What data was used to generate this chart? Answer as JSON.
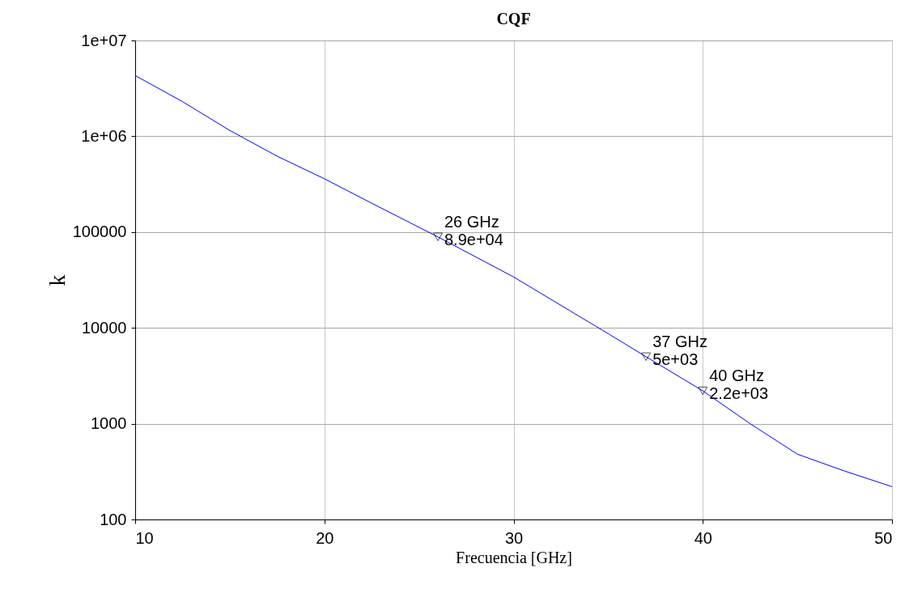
{
  "chart_data": {
    "type": "line",
    "title": "CQF",
    "xlabel": "Frecuencia [GHz]",
    "ylabel": "k",
    "x": [
      10,
      12.5,
      15,
      17.5,
      20,
      22.5,
      26,
      30,
      33,
      35,
      37,
      40,
      42.5,
      45,
      47.5,
      50
    ],
    "series": [
      {
        "color": "#0000ff",
        "values": [
          4300000,
          2300000,
          1150000,
          620000,
          360000,
          200000,
          89000,
          34000,
          15000,
          8700,
          5000,
          2200,
          1000,
          480,
          320,
          220
        ]
      }
    ],
    "xlim": [
      10,
      50
    ],
    "xticks": [
      10,
      20,
      30,
      40,
      50
    ],
    "ylim": [
      100,
      10000000
    ],
    "yticks": [
      100,
      1000,
      10000,
      100000,
      {
        "value": 1000000,
        "label": "1e+06"
      },
      {
        "value": 10000000,
        "label": "1e+07"
      }
    ],
    "log": "y",
    "grid": true,
    "line_style": "solid",
    "annotations": [
      {
        "text": "26 GHz\n8.9e+04",
        "x": 26,
        "y": 89000
      },
      {
        "text": "37 GHz\n5e+03",
        "x": 37,
        "y": 5000
      },
      {
        "text": "40 GHz\n2.2e+03",
        "x": 40,
        "y": 2200
      }
    ]
  }
}
